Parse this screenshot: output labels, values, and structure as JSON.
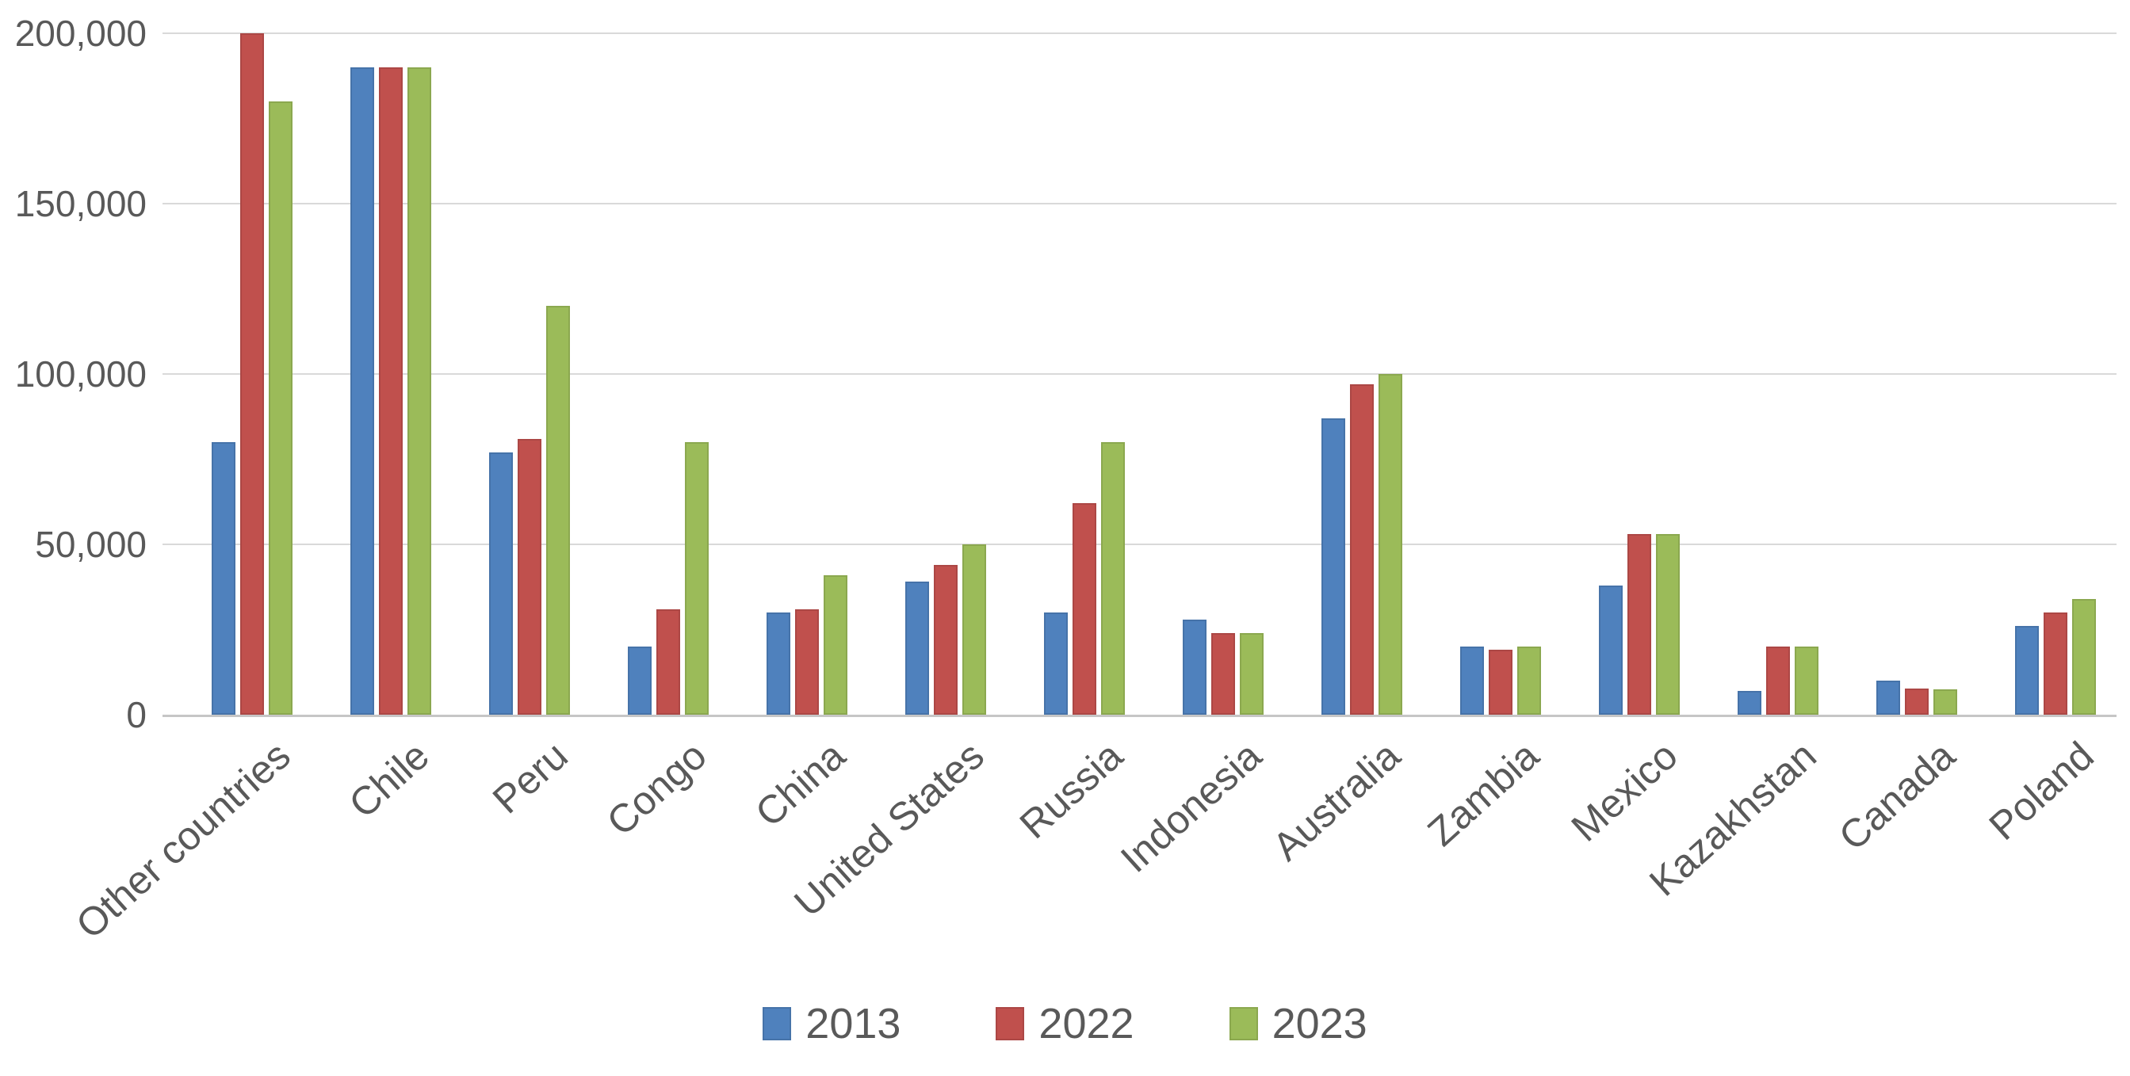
{
  "chart_data": {
    "type": "bar",
    "title": "",
    "categories": [
      "Other countries",
      "Chile",
      "Peru",
      "Congo",
      "China",
      "United States",
      "Russia",
      "Indonesia",
      "Australia",
      "Zambia",
      "Mexico",
      "Kazakhstan",
      "Canada",
      "Poland"
    ],
    "series": [
      {
        "name": "2013",
        "color": "#4F81BD",
        "values": [
          80000,
          190000,
          77000,
          20000,
          30000,
          39000,
          30000,
          28000,
          87000,
          20000,
          38000,
          7000,
          10000,
          26000
        ]
      },
      {
        "name": "2022",
        "color": "#C0504D",
        "values": [
          200000,
          190000,
          81000,
          31000,
          31000,
          44000,
          62000,
          24000,
          97000,
          19000,
          53000,
          20000,
          7600,
          30000
        ]
      },
      {
        "name": "2023",
        "color": "#9BBB59",
        "values": [
          180000,
          190000,
          120000,
          80000,
          41000,
          50000,
          80000,
          24000,
          100000,
          20000,
          53000,
          20000,
          7500,
          34000
        ]
      }
    ],
    "ylim": [
      0,
      200000
    ],
    "yticks": [
      {
        "value": 0,
        "label": "0"
      },
      {
        "value": 50000,
        "label": "50,000"
      },
      {
        "value": 100000,
        "label": "100,000"
      },
      {
        "value": 150000,
        "label": "150,000"
      },
      {
        "value": 200000,
        "label": "200,000"
      }
    ],
    "grid": true,
    "legend_position": "bottom",
    "xlabel": "",
    "ylabel": ""
  },
  "colors": {
    "background": "#FFFFFF",
    "gridline": "#D9D9D9",
    "axis_line": "#C6C6C6",
    "text": "#595959"
  }
}
